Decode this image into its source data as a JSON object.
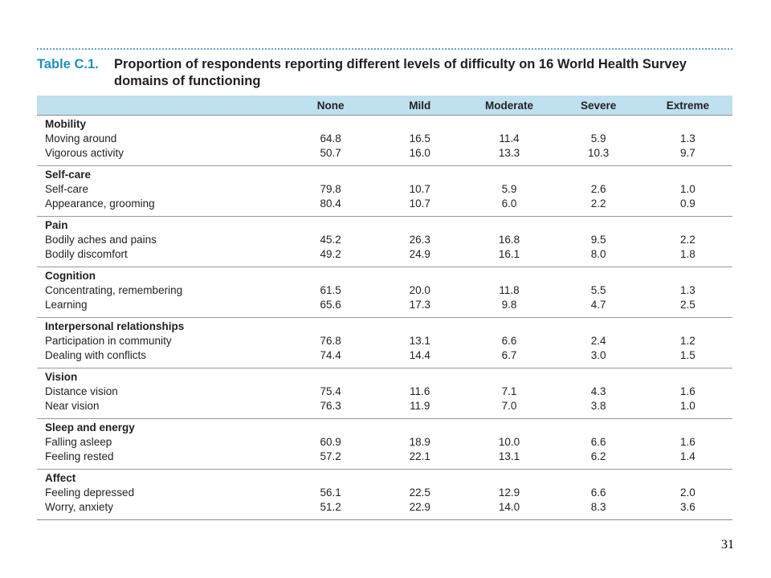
{
  "table": {
    "label": "Table C.1.",
    "title": "Proportion of respondents reporting different levels of difficulty on 16 World Health Survey domains of functioning",
    "columns": [
      "None",
      "Mild",
      "Moderate",
      "Severe",
      "Extreme"
    ],
    "groups": [
      {
        "name": "Mobility",
        "rows": [
          {
            "label": "Moving around",
            "values": [
              "64.8",
              "16.5",
              "11.4",
              "5.9",
              "1.3"
            ]
          },
          {
            "label": "Vigorous activity",
            "values": [
              "50.7",
              "16.0",
              "13.3",
              "10.3",
              "9.7"
            ]
          }
        ]
      },
      {
        "name": "Self-care",
        "rows": [
          {
            "label": "Self-care",
            "values": [
              "79.8",
              "10.7",
              "5.9",
              "2.6",
              "1.0"
            ]
          },
          {
            "label": "Appearance, grooming",
            "values": [
              "80.4",
              "10.7",
              "6.0",
              "2.2",
              "0.9"
            ]
          }
        ]
      },
      {
        "name": "Pain",
        "rows": [
          {
            "label": "Bodily aches and pains",
            "values": [
              "45.2",
              "26.3",
              "16.8",
              "9.5",
              "2.2"
            ]
          },
          {
            "label": "Bodily discomfort",
            "values": [
              "49.2",
              "24.9",
              "16.1",
              "8.0",
              "1.8"
            ]
          }
        ]
      },
      {
        "name": "Cognition",
        "rows": [
          {
            "label": "Concentrating, remembering",
            "values": [
              "61.5",
              "20.0",
              "11.8",
              "5.5",
              "1.3"
            ]
          },
          {
            "label": "Learning",
            "values": [
              "65.6",
              "17.3",
              "9.8",
              "4.7",
              "2.5"
            ]
          }
        ]
      },
      {
        "name": "Interpersonal relationships",
        "rows": [
          {
            "label": "Participation in community",
            "values": [
              "76.8",
              "13.1",
              "6.6",
              "2.4",
              "1.2"
            ]
          },
          {
            "label": "Dealing with conflicts",
            "values": [
              "74.4",
              "14.4",
              "6.7",
              "3.0",
              "1.5"
            ]
          }
        ]
      },
      {
        "name": "Vision",
        "rows": [
          {
            "label": "Distance vision",
            "values": [
              "75.4",
              "11.6",
              "7.1",
              "4.3",
              "1.6"
            ]
          },
          {
            "label": "Near vision",
            "values": [
              "76.3",
              "11.9",
              "7.0",
              "3.8",
              "1.0"
            ]
          }
        ]
      },
      {
        "name": "Sleep and energy",
        "rows": [
          {
            "label": "Falling asleep",
            "values": [
              "60.9",
              "18.9",
              "10.0",
              "6.6",
              "1.6"
            ]
          },
          {
            "label": "Feeling rested",
            "values": [
              "57.2",
              "22.1",
              "13.1",
              "6.2",
              "1.4"
            ]
          }
        ]
      },
      {
        "name": "Affect",
        "rows": [
          {
            "label": "Feeling depressed",
            "values": [
              "56.1",
              "22.5",
              "12.9",
              "6.6",
              "2.0"
            ]
          },
          {
            "label": "Worry, anxiety",
            "values": [
              "51.2",
              "22.9",
              "14.0",
              "8.3",
              "3.6"
            ]
          }
        ]
      }
    ]
  },
  "page_number": "31",
  "colors": {
    "title_label": "#1f8fc0",
    "header_background": "#bfe0ee",
    "dotted_rule": "#5aa6c8",
    "rule": "#9a9a9a"
  }
}
